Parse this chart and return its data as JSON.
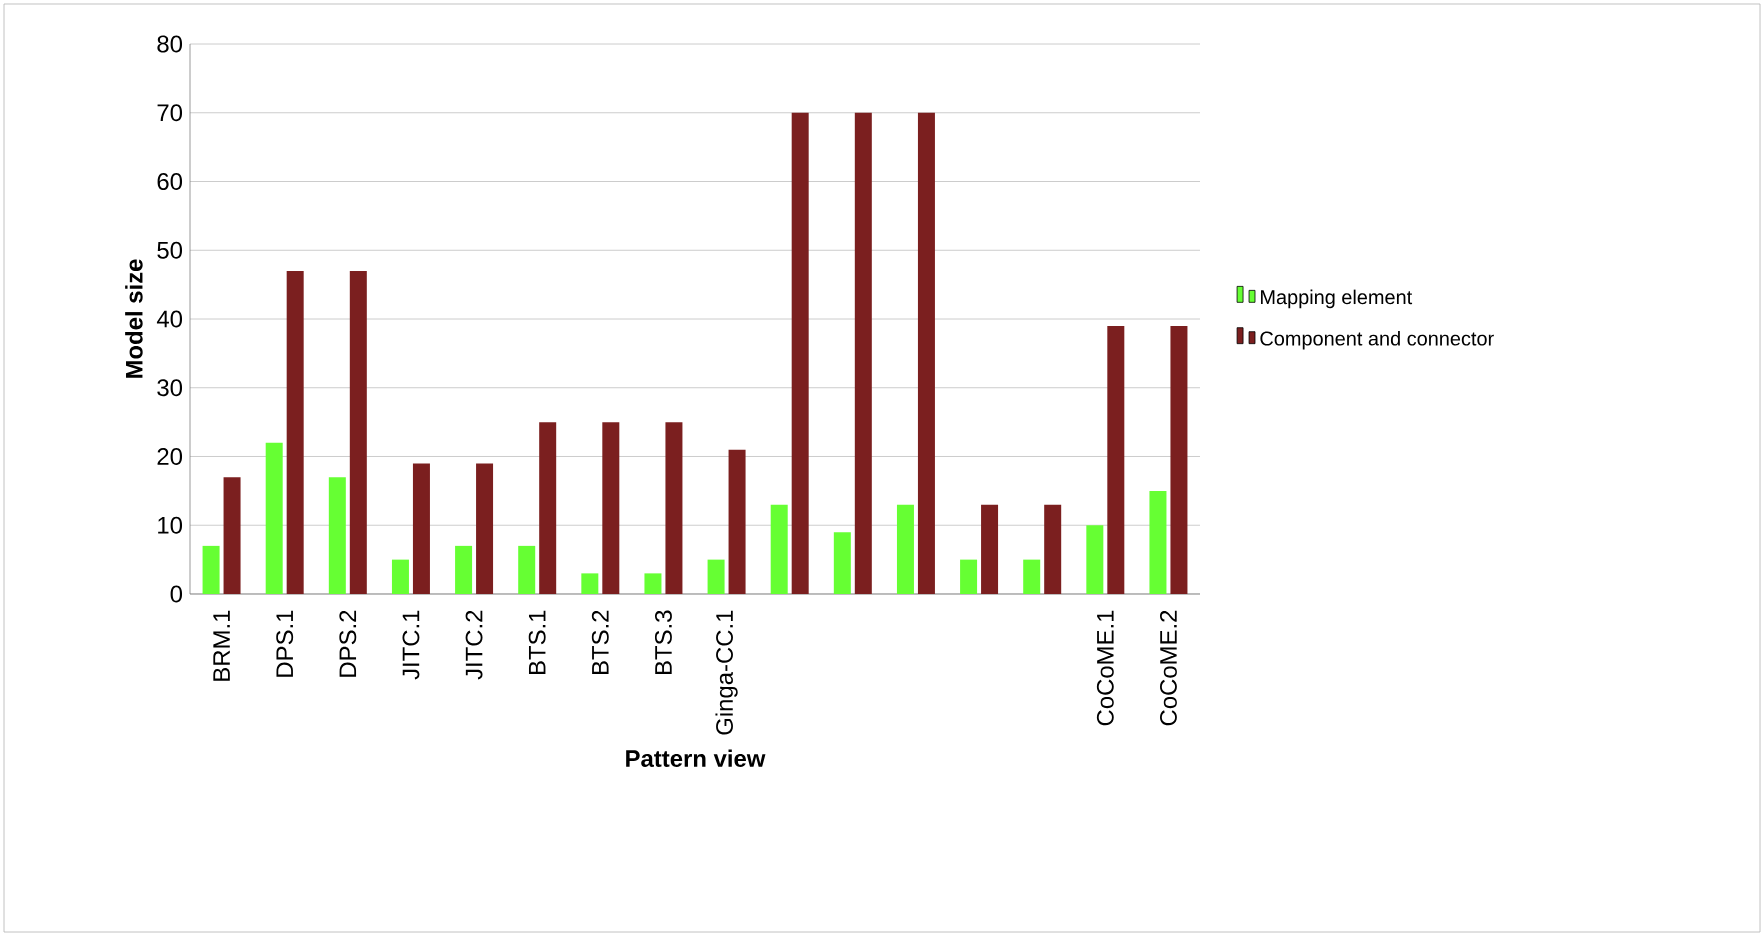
{
  "chart_data": {
    "type": "bar",
    "xlabel": "Pattern view",
    "ylabel": "Model size",
    "categories": [
      "BRM.1",
      "DPS.1",
      "DPS.2",
      "JITC.1",
      "JITC.2",
      "BTS.1",
      "BTS.2",
      "BTS.3",
      "Ginga-CC.1",
      null,
      null,
      null,
      null,
      null,
      "CoCoME.1",
      "CoCoME.2"
    ],
    "series": [
      {
        "name": "Mapping element",
        "color": "#66ff33",
        "values": [
          7,
          22,
          17,
          5,
          7,
          7,
          3,
          3,
          5,
          13,
          9,
          13,
          5,
          5,
          10,
          15
        ]
      },
      {
        "name": "Component and connector",
        "color": "#7b1f1f",
        "values": [
          17,
          47,
          47,
          19,
          19,
          25,
          25,
          25,
          21,
          70,
          70,
          70,
          13,
          13,
          39,
          39
        ]
      }
    ],
    "ylim": [
      0,
      80
    ],
    "yticks": [
      0,
      10,
      20,
      30,
      40,
      50,
      60,
      70,
      80
    ],
    "grid": "y",
    "legend": "right"
  }
}
